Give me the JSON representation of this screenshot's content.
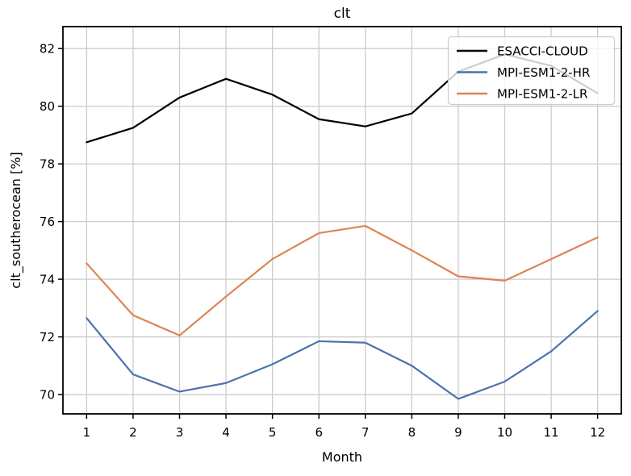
{
  "chart_data": {
    "type": "line",
    "title": "clt",
    "xlabel": "Month",
    "ylabel": "clt_southerocean [%]",
    "x": [
      1,
      2,
      3,
      4,
      5,
      6,
      7,
      8,
      9,
      10,
      11,
      12
    ],
    "xticks": [
      1,
      2,
      3,
      4,
      5,
      6,
      7,
      8,
      9,
      10,
      11,
      12
    ],
    "yticks": [
      70,
      72,
      74,
      76,
      78,
      80,
      82
    ],
    "xlim": [
      0.49,
      12.51
    ],
    "ylim": [
      69.33,
      82.76
    ],
    "grid": true,
    "legend_position": "upper right",
    "series": [
      {
        "name": "ESACCI-CLOUD",
        "color": "#000000",
        "values": [
          78.75,
          79.25,
          80.3,
          80.95,
          80.4,
          79.55,
          79.3,
          79.75,
          81.2,
          81.8,
          81.4,
          80.45
        ]
      },
      {
        "name": "MPI-ESM1-2-HR",
        "color": "#4c72b0",
        "values": [
          72.65,
          70.7,
          70.1,
          70.4,
          71.05,
          71.85,
          71.8,
          71.0,
          69.85,
          70.45,
          71.5,
          72.9
        ]
      },
      {
        "name": "MPI-ESM1-2-LR",
        "color": "#dd8452",
        "values": [
          74.55,
          72.75,
          72.05,
          73.4,
          74.7,
          75.6,
          75.85,
          75.0,
          74.1,
          73.95,
          74.7,
          75.45
        ]
      }
    ],
    "colors": {
      "grid": "#cccccc",
      "spine": "#000000",
      "text": "#000000",
      "legend_border": "#cccccc",
      "legend_fill": "#ffffff"
    }
  }
}
